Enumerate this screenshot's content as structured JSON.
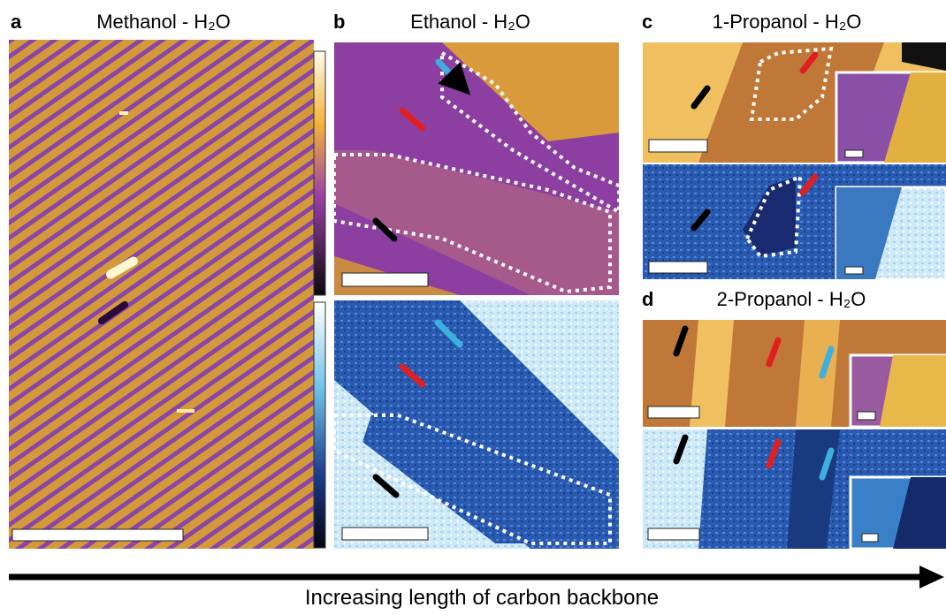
{
  "panels": [
    {
      "label": "a",
      "title": "Methanol - H₂O"
    },
    {
      "label": "b",
      "title": "Ethanol - H₂O"
    },
    {
      "label": "c",
      "title": "1-Propanol - H₂O"
    },
    {
      "label": "d",
      "title": "2-Propanol - H₂O"
    }
  ],
  "caption": "Increasing length of carbon backbone"
}
